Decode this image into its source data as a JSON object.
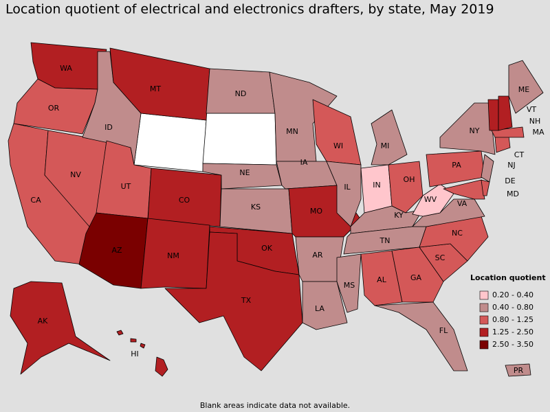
{
  "title": "Location quotient of electrical and electronics drafters, by state, May 2019",
  "legend": {
    "title": "Location quotient",
    "items": [
      {
        "label": "0.20 - 0.40",
        "color": "#ffc6cc"
      },
      {
        "label": "0.40 - 0.80",
        "color": "#c08c8c"
      },
      {
        "label": "0.80 - 1.25",
        "color": "#d45858"
      },
      {
        "label": "1.25 - 2.50",
        "color": "#b21f22"
      },
      {
        "label": "2.50 - 3.50",
        "color": "#7a0000"
      }
    ]
  },
  "no_data_color": "#ffffff",
  "states": [
    {
      "abbr": "WA",
      "class": 3
    },
    {
      "abbr": "OR",
      "class": 2
    },
    {
      "abbr": "CA",
      "class": 2
    },
    {
      "abbr": "NV",
      "class": 2
    },
    {
      "abbr": "ID",
      "class": 1
    },
    {
      "abbr": "MT",
      "class": 3
    },
    {
      "abbr": "UT",
      "class": 2
    },
    {
      "abbr": "CO",
      "class": 3
    },
    {
      "abbr": "AZ",
      "class": 4
    },
    {
      "abbr": "NM",
      "class": 3
    },
    {
      "abbr": "ND",
      "class": 1
    },
    {
      "abbr": "NE",
      "class": 1
    },
    {
      "abbr": "KS",
      "class": 1
    },
    {
      "abbr": "OK",
      "class": 3
    },
    {
      "abbr": "TX",
      "class": 3
    },
    {
      "abbr": "MN",
      "class": 1
    },
    {
      "abbr": "IA",
      "class": 1
    },
    {
      "abbr": "MO",
      "class": 3
    },
    {
      "abbr": "AR",
      "class": 1
    },
    {
      "abbr": "LA",
      "class": 1
    },
    {
      "abbr": "WI",
      "class": 2
    },
    {
      "abbr": "IL",
      "class": 1
    },
    {
      "abbr": "MI",
      "class": 1
    },
    {
      "abbr": "IN",
      "class": 0
    },
    {
      "abbr": "OH",
      "class": 2
    },
    {
      "abbr": "KY",
      "class": 1
    },
    {
      "abbr": "TN",
      "class": 1
    },
    {
      "abbr": "MS",
      "class": 1
    },
    {
      "abbr": "AL",
      "class": 2
    },
    {
      "abbr": "GA",
      "class": 2
    },
    {
      "abbr": "FL",
      "class": 1
    },
    {
      "abbr": "SC",
      "class": 2
    },
    {
      "abbr": "NC",
      "class": 2
    },
    {
      "abbr": "VA",
      "class": 1
    },
    {
      "abbr": "WV",
      "class": 0
    },
    {
      "abbr": "PA",
      "class": 2
    },
    {
      "abbr": "NY",
      "class": 1
    },
    {
      "abbr": "NJ",
      "class": 1
    },
    {
      "abbr": "MD",
      "class": 2
    },
    {
      "abbr": "DE",
      "class": 2
    },
    {
      "abbr": "CT",
      "class": 2
    },
    {
      "abbr": "MA",
      "class": 2
    },
    {
      "abbr": "VT",
      "class": 3
    },
    {
      "abbr": "NH",
      "class": 3
    },
    {
      "abbr": "ME",
      "class": 1
    },
    {
      "abbr": "AK",
      "class": 3
    },
    {
      "abbr": "HI",
      "class": 3
    },
    {
      "abbr": "PR",
      "class": 1
    }
  ],
  "footnote": "Blank areas indicate data not available."
}
